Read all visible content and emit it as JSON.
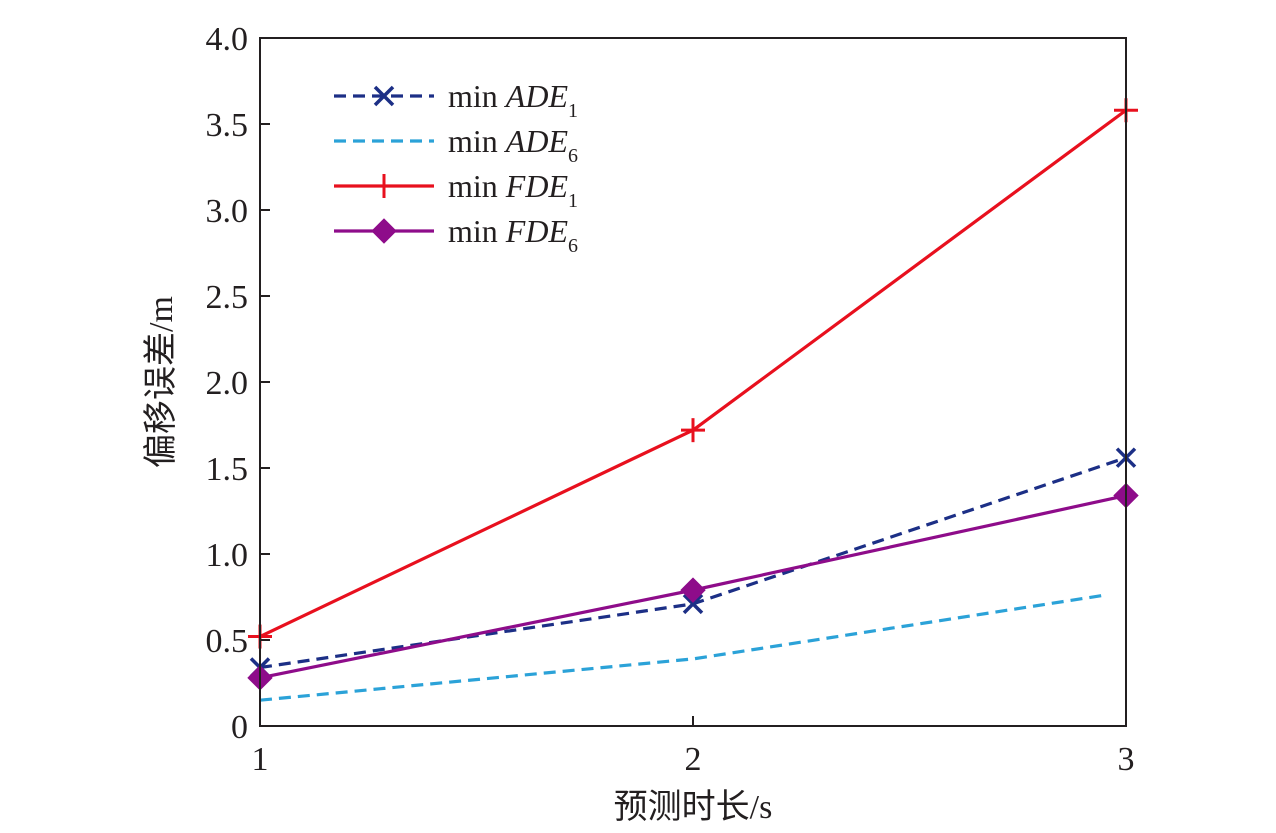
{
  "chart_data": {
    "type": "line",
    "title": "",
    "xlabel": "预测时长/s",
    "ylabel": "偏移误差/m",
    "xlim": [
      1,
      3
    ],
    "ylim": [
      0,
      4
    ],
    "x": [
      1,
      2,
      3
    ],
    "x_ticks": [
      "1",
      "2",
      "3"
    ],
    "y_ticks": [
      "0",
      "0.5",
      "1.0",
      "1.5",
      "2.0",
      "2.5",
      "3.0",
      "3.5",
      "4.0"
    ],
    "grid": false,
    "legend_position": "top-left",
    "series": [
      {
        "name": "min ADE1",
        "legend_prefix": "min ",
        "legend_main": "ADE",
        "legend_sub": "1",
        "values": [
          0.34,
          0.71,
          1.56
        ],
        "color": "#1c2f86",
        "line": "dashed",
        "marker": "x"
      },
      {
        "name": "min ADE6",
        "legend_prefix": "min ",
        "legend_main": "ADE",
        "legend_sub": "6",
        "values": [
          0.15,
          0.39,
          0.78
        ],
        "color": "#2ba2d8",
        "line": "dashed",
        "marker": "none"
      },
      {
        "name": "min FDE1",
        "legend_prefix": "min ",
        "legend_main": "FDE",
        "legend_sub": "1",
        "values": [
          0.52,
          1.72,
          3.58
        ],
        "color": "#e8101e",
        "line": "solid",
        "marker": "plus"
      },
      {
        "name": "min FDE6",
        "legend_prefix": "min ",
        "legend_main": "FDE",
        "legend_sub": "6",
        "values": [
          0.28,
          0.79,
          1.34
        ],
        "color": "#8e0c8a",
        "line": "solid",
        "marker": "diamond"
      }
    ]
  }
}
